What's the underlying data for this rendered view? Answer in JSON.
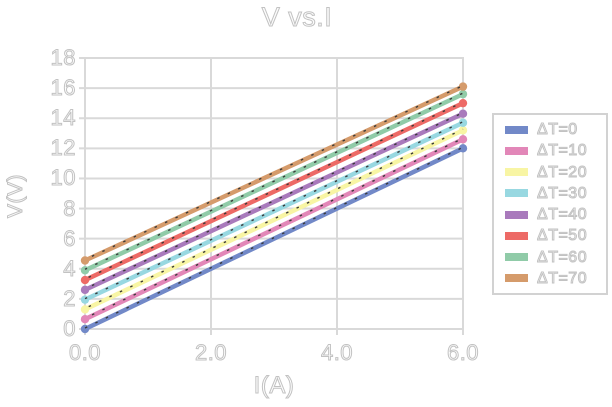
{
  "chart_data": {
    "type": "line",
    "title": "V vs.I",
    "xlabel": "I(A)",
    "ylabel": "V(V)",
    "xlim": [
      0,
      6
    ],
    "ylim": [
      0,
      18
    ],
    "x_tick_values": [
      0,
      2,
      4,
      6
    ],
    "x_tick_labels": [
      "0.0",
      "2.0",
      "4.0",
      "6.0"
    ],
    "y_tick_values": [
      0,
      2,
      4,
      6,
      8,
      10,
      12,
      14,
      16,
      18
    ],
    "y_tick_labels": [
      "0",
      "2",
      "4",
      "6",
      "8",
      "10",
      "12",
      "14",
      "16",
      "18"
    ],
    "grid": true,
    "legend_position": "right",
    "marker": "point-at-endpoints",
    "trendline": "black dotted line overlapping each series",
    "x": [
      0,
      6
    ],
    "series": [
      {
        "name": "ΔT=0",
        "color": "#7289c8",
        "values": [
          0.0,
          12.0
        ]
      },
      {
        "name": "ΔT=10",
        "color": "#e287b8",
        "values": [
          0.65,
          12.6
        ]
      },
      {
        "name": "ΔT=20",
        "color": "#f8f5a4",
        "values": [
          1.3,
          13.2
        ]
      },
      {
        "name": "ΔT=30",
        "color": "#98d8e1",
        "values": [
          1.95,
          13.7
        ]
      },
      {
        "name": "ΔT=40",
        "color": "#a97abc",
        "values": [
          2.6,
          14.3
        ]
      },
      {
        "name": "ΔT=50",
        "color": "#ed6a66",
        "values": [
          3.25,
          15.0
        ]
      },
      {
        "name": "ΔT=60",
        "color": "#90cba8",
        "values": [
          3.9,
          15.6
        ]
      },
      {
        "name": "ΔT=70",
        "color": "#d59b6b",
        "values": [
          4.55,
          16.1
        ]
      }
    ],
    "colors": {
      "gridline": "#d9d9d9",
      "frame": "#d9d9d9",
      "legend_border": "#d2d2d2",
      "text_outline": "#c2c2c2",
      "trendline_dots": "#3a3a3a"
    }
  }
}
